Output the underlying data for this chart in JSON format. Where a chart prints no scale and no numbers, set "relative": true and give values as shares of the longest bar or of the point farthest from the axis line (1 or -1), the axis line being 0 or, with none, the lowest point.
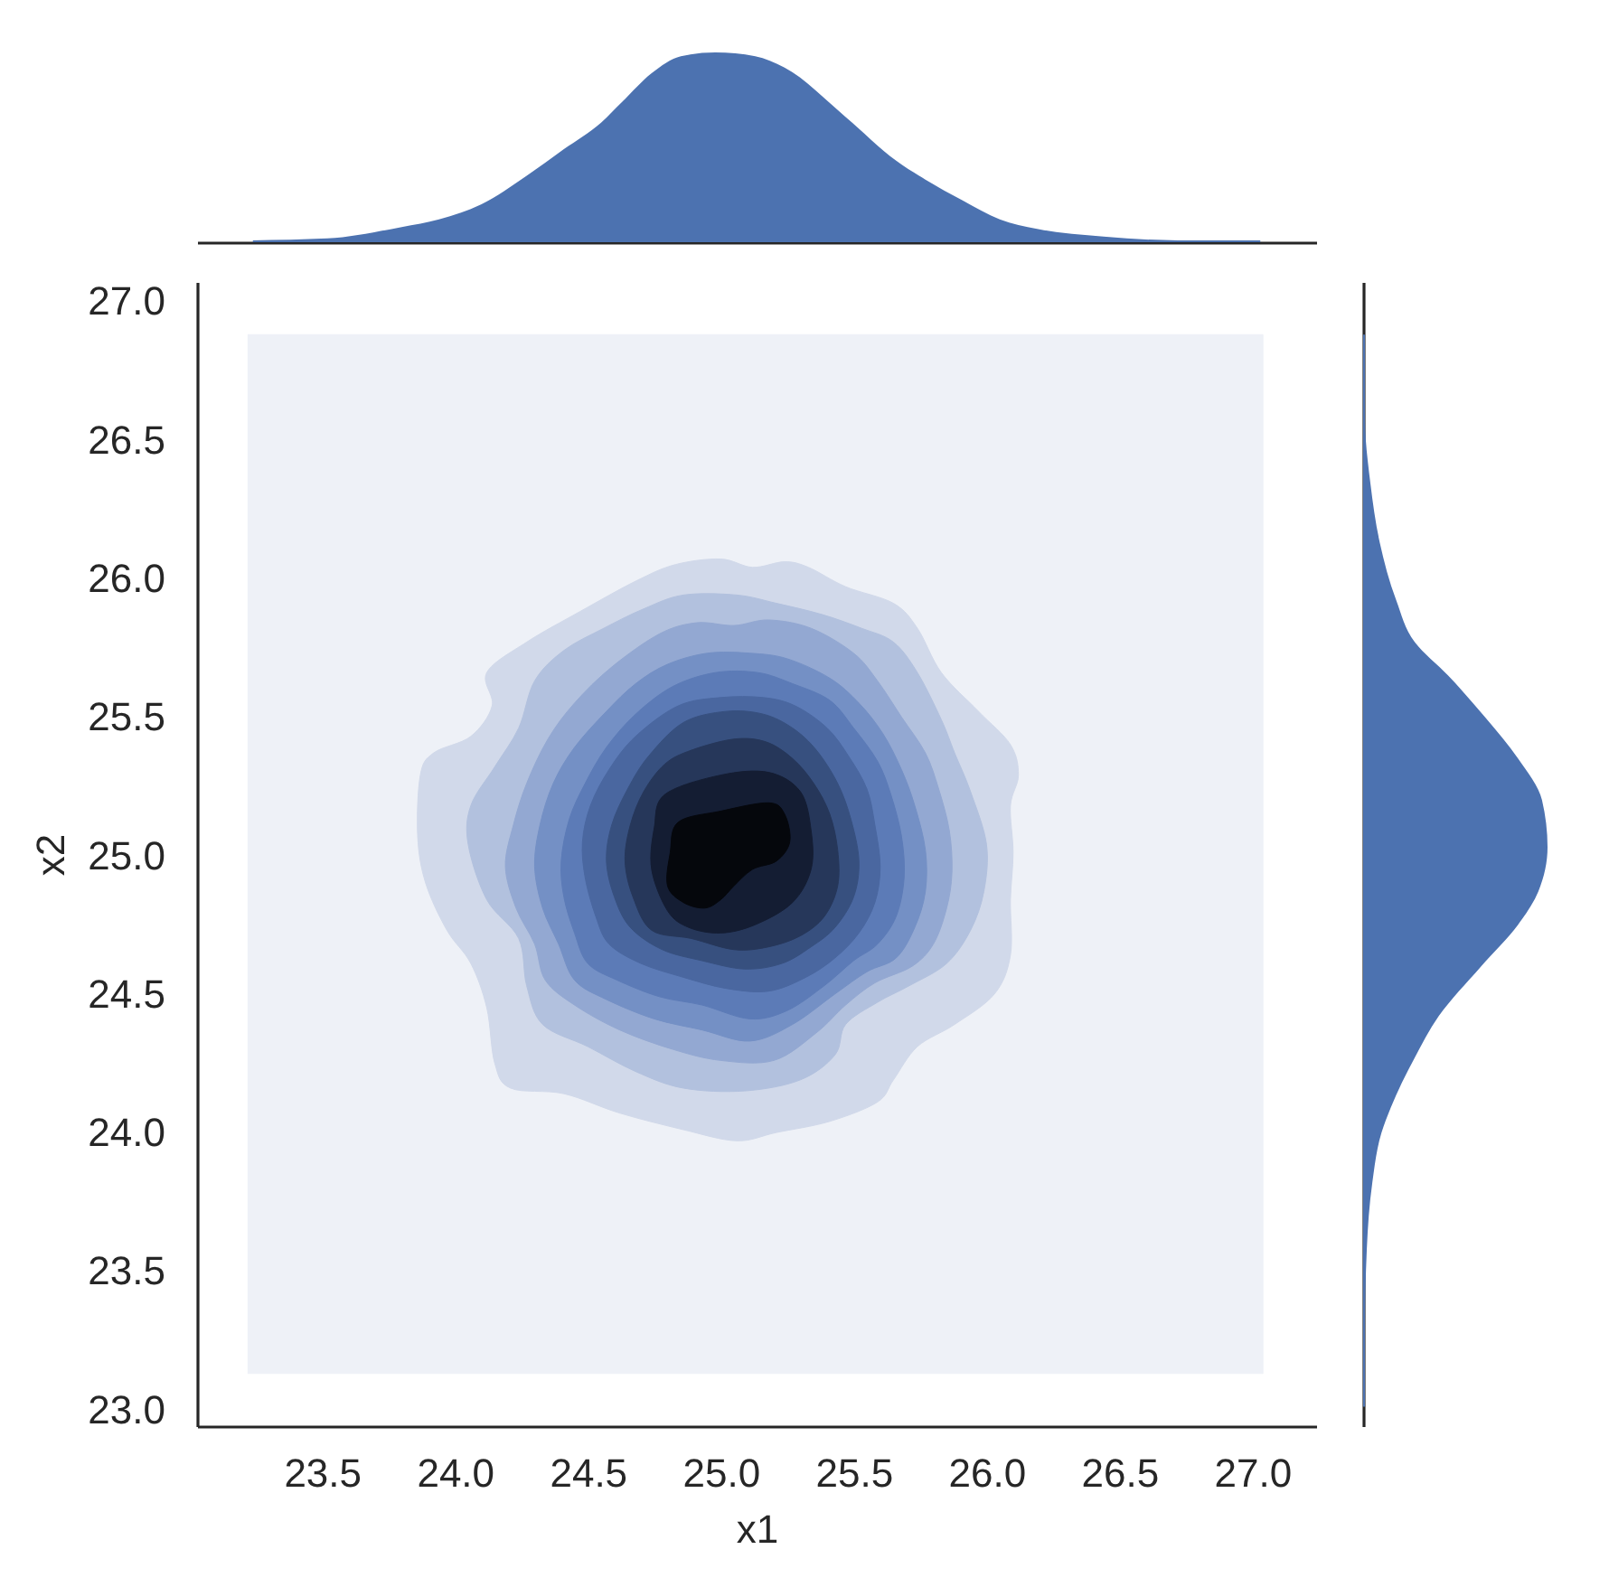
{
  "chart_data": [
    {
      "type": "area",
      "relative": true,
      "tick_labels": false,
      "color": "#4c72b0",
      "xlim": [
        23.03,
        27.24
      ],
      "x": [
        23.24,
        23.52,
        23.8,
        23.94,
        24.1,
        24.27,
        24.41,
        24.55,
        24.63,
        24.74,
        24.85,
        24.98,
        25.13,
        25.24,
        25.47,
        25.66,
        25.77,
        25.91,
        26.05,
        26.19,
        26.44,
        26.72,
        27.03
      ],
      "values": [
        0.01,
        0.02,
        0.08,
        0.12,
        0.2,
        0.35,
        0.49,
        0.63,
        0.74,
        0.89,
        0.98,
        1,
        0.98,
        0.92,
        0.66,
        0.43,
        0.33,
        0.22,
        0.12,
        0.07,
        0.03,
        0.01,
        0.01
      ]
    },
    {
      "type": "area",
      "xlabel": "x1",
      "ylabel": "x2",
      "xlim": [
        23.03,
        27.24
      ],
      "ylim": [
        22.94,
        27.07
      ],
      "xticks": [
        23.5,
        {
          "value": 24,
          "label": "24.0"
        },
        24.5,
        {
          "value": 25,
          "label": "25.0"
        },
        25.5,
        {
          "value": 26,
          "label": "26.0"
        },
        26.5,
        {
          "value": 27,
          "label": "27.0"
        }
      ],
      "yticks": [
        {
          "value": 23,
          "label": "23.0"
        },
        23.5,
        {
          "value": 24,
          "label": "24.0"
        },
        24.5,
        {
          "value": 25,
          "label": "25.0"
        },
        25.5,
        {
          "value": 26,
          "label": "26.0"
        },
        26.5,
        {
          "value": 27,
          "label": "27.0"
        }
      ],
      "series": [
        {
          "color": "#eef1f7",
          "x": [
            23.22,
            27.04,
            27.04,
            23.22
          ],
          "values": [
            23.13,
            23.13,
            26.88,
            26.88
          ]
        },
        {
          "color": "#d1d9ea",
          "x": [
            24.83,
            25.0,
            25.12,
            25.24,
            25.33,
            25.47,
            25.65,
            25.74,
            25.83,
            25.97,
            26.09,
            26.12,
            26.09,
            26.1,
            26.09,
            26.09,
            26.03,
            25.88,
            25.74,
            25.65,
            25.59,
            25.41,
            25.21,
            25.06,
            24.86,
            24.62,
            24.41,
            24.21,
            24.15,
            24.12,
            24.06,
            23.97,
            23.89,
            23.86,
            23.87,
            23.92,
            24.06,
            24.14,
            24.12,
            24.27,
            24.47,
            24.68
          ],
          "values": [
            26.05,
            26.07,
            26.04,
            26.06,
            26.04,
            25.97,
            25.91,
            25.82,
            25.66,
            25.52,
            25.4,
            25.29,
            25.18,
            25.01,
            24.84,
            24.64,
            24.5,
            24.39,
            24.31,
            24.19,
            24.11,
            24.04,
            24.0,
            23.97,
            24.01,
            24.07,
            24.14,
            24.16,
            24.25,
            24.45,
            24.61,
            24.73,
            24.9,
            25.07,
            25.29,
            25.37,
            25.43,
            25.54,
            25.66,
            25.77,
            25.88,
            25.99
          ]
        },
        {
          "color": "#b2c1de",
          "x": [
            24.71,
            24.86,
            25.06,
            25.21,
            25.38,
            25.53,
            25.65,
            25.74,
            25.83,
            25.88,
            25.94,
            26.0,
            25.99,
            25.94,
            25.85,
            25.71,
            25.59,
            25.47,
            25.43,
            25.3,
            25.09,
            24.86,
            24.68,
            24.5,
            24.33,
            24.27,
            24.24,
            24.12,
            24.05,
            24.06,
            24.15,
            24.24,
            24.3,
            24.41,
            24.56
          ],
          "values": [
            25.89,
            25.94,
            25.94,
            25.91,
            25.87,
            25.82,
            25.77,
            25.66,
            25.49,
            25.37,
            25.23,
            25.04,
            24.87,
            24.73,
            24.61,
            24.53,
            24.47,
            24.39,
            24.28,
            24.19,
            24.15,
            24.16,
            24.22,
            24.31,
            24.39,
            24.53,
            24.7,
            24.84,
            25.04,
            25.18,
            25.32,
            25.46,
            25.63,
            25.74,
            25.82
          ]
        },
        {
          "color": "#93a8d2",
          "x": [
            24.77,
            24.91,
            25.05,
            25.18,
            25.34,
            25.5,
            25.59,
            25.68,
            25.77,
            25.82,
            25.86,
            25.87,
            25.85,
            25.8,
            25.72,
            25.58,
            25.47,
            25.36,
            25.2,
            25.0,
            24.82,
            24.62,
            24.45,
            24.34,
            24.3,
            24.23,
            24.19,
            24.22,
            24.27,
            24.35,
            24.45,
            24.59
          ],
          "values": [
            25.8,
            25.84,
            25.83,
            25.85,
            25.82,
            25.73,
            25.63,
            25.5,
            25.37,
            25.24,
            25.09,
            24.94,
            24.81,
            24.68,
            24.6,
            24.54,
            24.46,
            24.36,
            24.26,
            24.26,
            24.3,
            24.37,
            24.46,
            24.55,
            24.68,
            24.81,
            24.96,
            25.11,
            25.26,
            25.42,
            25.55,
            25.68
          ]
        },
        {
          "color": "#7490c5",
          "x": [
            24.8,
            24.95,
            25.11,
            25.25,
            25.41,
            25.52,
            25.61,
            25.68,
            25.73,
            25.77,
            25.77,
            25.73,
            25.66,
            25.55,
            25.43,
            25.27,
            25.11,
            24.93,
            24.75,
            24.57,
            24.45,
            24.39,
            24.33,
            24.3,
            24.32,
            24.37,
            24.45,
            24.57,
            24.68
          ],
          "values": [
            25.69,
            25.73,
            25.73,
            25.71,
            25.64,
            25.55,
            25.44,
            25.31,
            25.18,
            25.02,
            24.87,
            24.74,
            24.63,
            24.58,
            24.5,
            24.39,
            24.33,
            24.37,
            24.41,
            24.48,
            24.55,
            24.68,
            24.81,
            24.96,
            25.11,
            25.26,
            25.39,
            25.52,
            25.62
          ]
        },
        {
          "color": "#5c7bb7",
          "x": [
            24.82,
            24.98,
            25.14,
            25.27,
            25.41,
            25.5,
            25.59,
            25.64,
            25.68,
            25.69,
            25.66,
            25.59,
            25.5,
            25.39,
            25.25,
            25.11,
            24.93,
            24.77,
            24.61,
            24.5,
            24.45,
            24.41,
            24.4,
            24.43,
            24.49,
            24.57,
            24.68
          ],
          "values": [
            25.61,
            25.66,
            25.66,
            25.62,
            25.56,
            25.46,
            25.34,
            25.22,
            25.07,
            24.92,
            24.78,
            24.68,
            24.62,
            24.53,
            24.44,
            24.41,
            24.46,
            24.49,
            24.55,
            24.61,
            24.72,
            24.85,
            24.98,
            25.13,
            25.26,
            25.39,
            25.51
          ]
        },
        {
          "color": "#4a67a0",
          "x": [
            24.84,
            25.0,
            25.16,
            25.28,
            25.4,
            25.48,
            25.55,
            25.58,
            25.6,
            25.58,
            25.52,
            25.43,
            25.32,
            25.18,
            25.02,
            24.86,
            24.7,
            24.58,
            24.53,
            24.49,
            24.48,
            24.51,
            24.58,
            24.68
          ],
          "values": [
            25.54,
            25.57,
            25.57,
            25.54,
            25.46,
            25.36,
            25.24,
            25.11,
            24.96,
            24.83,
            24.72,
            24.63,
            24.56,
            24.51,
            24.52,
            24.56,
            24.61,
            24.68,
            24.78,
            24.92,
            25.05,
            25.18,
            25.31,
            25.43
          ]
        },
        {
          "color": "#37507f",
          "x": [
            24.86,
            25.02,
            25.16,
            25.27,
            25.36,
            25.44,
            25.49,
            25.52,
            25.5,
            25.43,
            25.34,
            25.23,
            25.09,
            24.93,
            24.78,
            24.66,
            24.6,
            24.57,
            24.59,
            24.65,
            24.73
          ],
          "values": [
            25.48,
            25.52,
            25.51,
            25.46,
            25.38,
            25.26,
            25.13,
            24.98,
            24.85,
            24.74,
            24.67,
            24.61,
            24.59,
            24.62,
            24.66,
            24.74,
            24.85,
            24.98,
            25.11,
            25.24,
            25.36
          ]
        },
        {
          "color": "#26375a",
          "x": [
            24.89,
            25.05,
            25.17,
            25.27,
            25.35,
            25.41,
            25.44,
            25.44,
            25.39,
            25.3,
            25.18,
            25.05,
            24.89,
            24.74,
            24.67,
            24.64,
            24.66,
            24.71,
            24.79
          ],
          "values": [
            25.38,
            25.42,
            25.41,
            25.35,
            25.26,
            25.15,
            25.02,
            24.89,
            24.78,
            24.71,
            24.67,
            24.66,
            24.7,
            24.73,
            24.85,
            24.98,
            25.11,
            25.23,
            25.33
          ]
        },
        {
          "color": "#141d33",
          "x": [
            24.79,
            25.0,
            25.18,
            25.3,
            25.34,
            25.34,
            25.27,
            25.13,
            25.0,
            24.88,
            24.8,
            24.74,
            24.75
          ],
          "values": [
            25.22,
            25.29,
            25.3,
            25.23,
            25.09,
            24.95,
            24.83,
            24.75,
            24.72,
            24.74,
            24.8,
            24.95,
            25.1
          ]
        },
        {
          "color": "#05070c",
          "x": [
            24.84,
            25.0,
            25.18,
            25.24,
            25.26,
            25.21,
            25.12,
            25.05,
            25.0,
            24.94,
            24.86,
            24.8,
            24.81
          ],
          "values": [
            25.12,
            25.16,
            25.19,
            25.15,
            25.05,
            24.98,
            24.95,
            24.89,
            24.84,
            24.81,
            24.83,
            24.89,
            25.01
          ]
        }
      ]
    },
    {
      "type": "area",
      "orientation": "horizontal",
      "relative": true,
      "tick_labels": false,
      "color": "#4c72b0",
      "ylim": [
        22.94,
        27.07
      ],
      "x": [
        23.01,
        23.28,
        23.58,
        23.82,
        24.0,
        24.09,
        24.27,
        24.42,
        24.6,
        24.75,
        24.87,
        25.03,
        25.2,
        25.35,
        25.5,
        25.65,
        25.77,
        25.92,
        26.13,
        26.34,
        26.58,
        26.88
      ],
      "values": [
        0.01,
        0.01,
        0.02,
        0.05,
        0.1,
        0.15,
        0.28,
        0.41,
        0.64,
        0.84,
        0.95,
        1,
        0.97,
        0.84,
        0.66,
        0.46,
        0.28,
        0.18,
        0.09,
        0.04,
        0.01,
        0.01
      ]
    }
  ]
}
